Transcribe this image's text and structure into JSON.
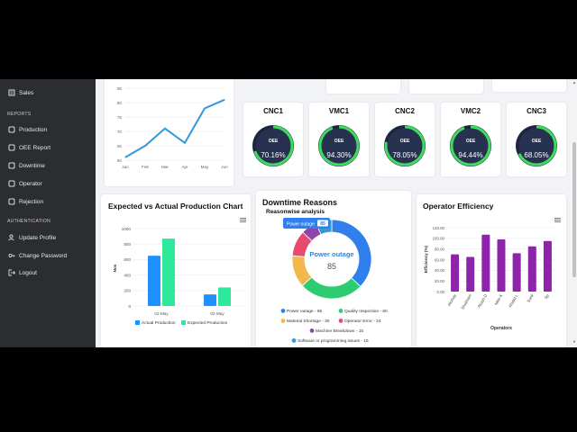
{
  "sidebar": {
    "sales": "Sales",
    "reports_heading": "REPORTS",
    "production": "Production",
    "oee_report": "OEE Report",
    "downtime": "Downtime",
    "operator": "Operator",
    "rejection": "Rejection",
    "auth_heading": "AUTHENTICATION",
    "update_profile": "Update Profile",
    "change_password": "Change Password",
    "logout": "Logout"
  },
  "machines": [
    {
      "name": "CNC1",
      "oee_label": "OEE",
      "value": "70.16%",
      "fraction": 0.7016
    },
    {
      "name": "VMC1",
      "oee_label": "OEE",
      "value": "94.30%",
      "fraction": 0.943
    },
    {
      "name": "CNC2",
      "oee_label": "OEE",
      "value": "78.05%",
      "fraction": 0.7805
    },
    {
      "name": "VMC2",
      "oee_label": "OEE",
      "value": "94.44%",
      "fraction": 0.9444
    },
    {
      "name": "CNC3",
      "oee_label": "OEE",
      "value": "68.05%",
      "fraction": 0.6805
    }
  ],
  "colors": {
    "sidebar_bg": "#2b2d31",
    "gauge_bg": "#273251",
    "gauge_ring": "#3ddc5c",
    "line": "#3498db",
    "actual": "#1e90ff",
    "expected": "#2ee89b",
    "operator_bar": "#8e24aa"
  },
  "chart_data": [
    {
      "type": "line",
      "categories": [
        "Jan",
        "Feb",
        "Mar",
        "Apr",
        "May",
        "Jun"
      ],
      "values": [
        61,
        65,
        71,
        66,
        78,
        81
      ],
      "ylim": [
        60,
        85
      ],
      "yticks": [
        "60",
        "65",
        "70",
        "75",
        "80",
        "85"
      ],
      "grid": true
    },
    {
      "type": "bar",
      "title": "Expected vs Actual Production Chart",
      "ylabel": "Nos",
      "categories": [
        "01-May",
        "02-May"
      ],
      "ylim": [
        0,
        1000
      ],
      "yticks": [
        "0",
        "200",
        "400",
        "600",
        "800",
        "1000"
      ],
      "series": [
        {
          "name": "Actual Production",
          "values": [
            650,
            150
          ]
        },
        {
          "name": "Expected Production",
          "values": [
            870,
            240
          ]
        }
      ],
      "legend": "bottom"
    },
    {
      "type": "pie",
      "title": "Downtime Reasons",
      "subtitle": "Reasonwise analysis",
      "center_label": "Power outage",
      "center_value": "85",
      "tooltip_label": "Power outage",
      "tooltip_value": "85",
      "slices": [
        {
          "label": "Power outage",
          "value": 85,
          "color": "#2f80ed"
        },
        {
          "label": "Quality Inspection",
          "value": 60,
          "color": "#2ecc71"
        },
        {
          "label": "Material Shortage",
          "value": 30,
          "color": "#f2b84b"
        },
        {
          "label": "Operator Error",
          "value": 24,
          "color": "#e84a6f"
        },
        {
          "label": "Machine Breakdown",
          "value": 15,
          "color": "#8e44ad"
        },
        {
          "label": "Software or programming issues",
          "value": 15,
          "color": "#3498db"
        }
      ],
      "legend_text": [
        "Power outage - 85",
        "Quality Inspection - 60",
        "Material Shortage - 30",
        "Operator Error - 24",
        "Machine Breakdown - 15",
        "Software or programming issues - 15"
      ]
    },
    {
      "type": "bar",
      "title": "Operator Efficiency",
      "xlabel": "Operators",
      "ylabel": "Efficiency (%)",
      "categories": [
        "Akshay",
        "Shubham",
        "Akash D",
        "Nitin K",
        "Khalid L",
        "Sunil",
        "Sp"
      ],
      "values": [
        70,
        65,
        107,
        98,
        72,
        85,
        95
      ],
      "ylim": [
        0,
        120
      ],
      "yticks": [
        "0.00",
        "20.00",
        "40.00",
        "60.00",
        "80.00",
        "100.00",
        "120.00"
      ]
    }
  ]
}
